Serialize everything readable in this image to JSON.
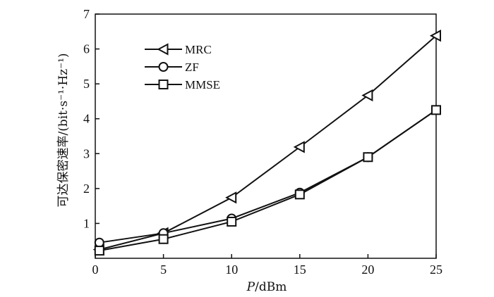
{
  "chart_data": {
    "type": "line",
    "xlabel_var": "P",
    "xlabel_unit": "/dBm",
    "ylabel": "可达保密速率/(bit·s⁻¹·Hz⁻¹)",
    "xlim": [
      0,
      25
    ],
    "ylim": [
      0,
      7
    ],
    "x_ticks": [
      "0",
      "5",
      "10",
      "15",
      "20",
      "25"
    ],
    "y_ticks": [
      "1",
      "2",
      "3",
      "4",
      "5",
      "6",
      "7"
    ],
    "grid": false,
    "legend_position": "top-left",
    "series": [
      {
        "name": "MRC",
        "marker": "triangle-left",
        "x": [
          0.3,
          5,
          10,
          15,
          20,
          25
        ],
        "y": [
          0.25,
          0.72,
          1.74,
          3.19,
          4.67,
          6.38
        ]
      },
      {
        "name": "ZF",
        "marker": "circle",
        "x": [
          0.3,
          5,
          10,
          15,
          20,
          25
        ],
        "y": [
          0.45,
          0.72,
          1.14,
          1.88,
          2.9,
          4.25
        ]
      },
      {
        "name": "MMSE",
        "marker": "square",
        "x": [
          0.3,
          5,
          10,
          15,
          20,
          25
        ],
        "y": [
          0.22,
          0.55,
          1.05,
          1.83,
          2.9,
          4.25
        ]
      }
    ]
  }
}
